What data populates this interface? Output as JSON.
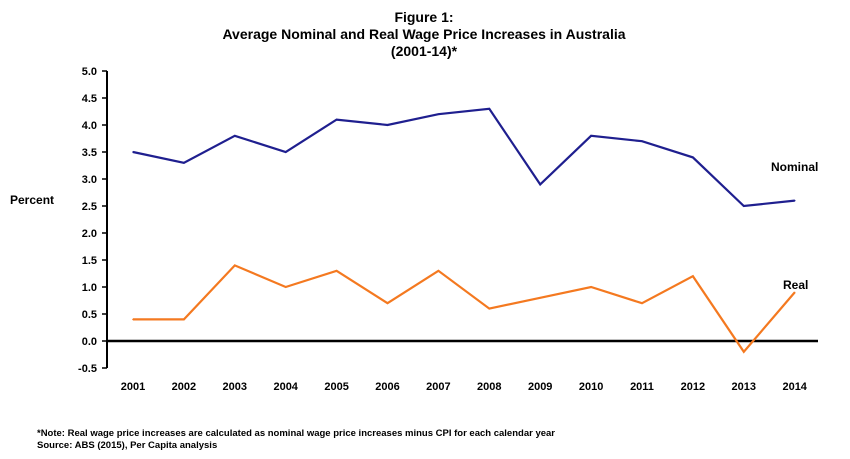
{
  "chart_data": {
    "type": "line",
    "title": [
      "Figure 1:",
      "Average Nominal and Real Wage Price Increases in Australia",
      "(2001-14)*"
    ],
    "ylabel": "Percent",
    "xlabel": "",
    "categories": [
      "2001",
      "2002",
      "2003",
      "2004",
      "2005",
      "2006",
      "2007",
      "2008",
      "2009",
      "2010",
      "2011",
      "2012",
      "2013",
      "2014"
    ],
    "ylim": [
      -0.5,
      5.0
    ],
    "yticks": [
      "5.0",
      "4.5",
      "4.0",
      "3.5",
      "3.0",
      "2.5",
      "2.0",
      "1.5",
      "1.0",
      "0.5",
      "0.0",
      "-0.5"
    ],
    "ytick_values": [
      5.0,
      4.5,
      4.0,
      3.5,
      3.0,
      2.5,
      2.0,
      1.5,
      1.0,
      0.5,
      0.0,
      -0.5
    ],
    "grid": false,
    "series": [
      {
        "name": "Nominal",
        "color": "#1f1f8f",
        "values": [
          3.5,
          3.3,
          3.8,
          3.5,
          4.1,
          4.0,
          4.2,
          4.3,
          2.9,
          3.8,
          3.7,
          3.4,
          2.5,
          2.6
        ]
      },
      {
        "name": "Real",
        "color": "#f47920",
        "values": [
          0.4,
          0.4,
          1.4,
          1.0,
          1.3,
          0.7,
          1.3,
          0.6,
          0.8,
          1.0,
          0.7,
          1.2,
          -0.2,
          0.9
        ]
      }
    ],
    "notes": [
      "*Note: Real wage price increases are calculated as nominal wage price increases minus CPI for each calendar year",
      "Source: ABS (2015), Per Capita analysis"
    ]
  }
}
